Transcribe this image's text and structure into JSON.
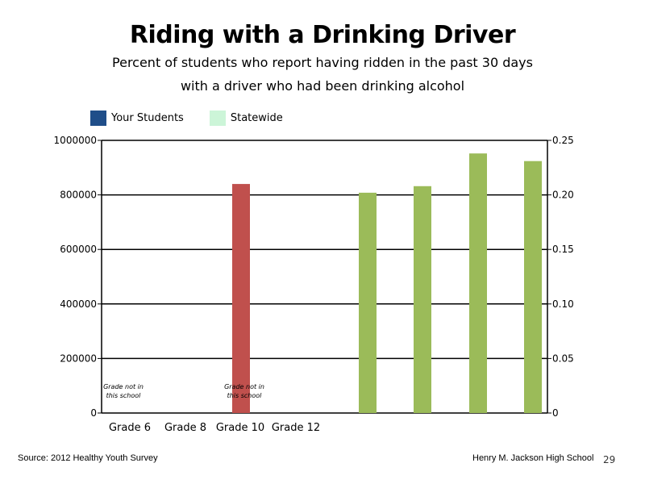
{
  "title": "Riding with a Drinking Driver",
  "subtitle_line1": "Percent of students who report having ridden in the past 30 days",
  "subtitle_line2": "with a driver who had been drinking alcohol",
  "legend": [
    {
      "label": "Your Students",
      "color": "#1f4e89"
    },
    {
      "label": "Statewide",
      "color": "#ccf5d8"
    }
  ],
  "footer": {
    "source": "Source: 2012 Healthy Youth Survey",
    "school": "Henry M. Jackson High School",
    "page": "29"
  },
  "chart_data": {
    "type": "bar",
    "categories": [
      "Grade 6",
      "Grade 8",
      "Grade 10",
      "Grade 12"
    ],
    "left_axis": {
      "ylim": [
        0,
        1000000
      ],
      "ticks": [
        "0",
        "200000",
        "400000",
        "600000",
        "800000",
        "1000000"
      ]
    },
    "right_axis": {
      "ylim": [
        0,
        0.25
      ],
      "ticks": [
        "0",
        "0.05",
        "0.10",
        "0.15",
        "0.20",
        "0.25"
      ]
    },
    "bars": [
      {
        "color": "#c0504d",
        "value": 840000,
        "axis": "left"
      },
      {
        "color": "#9bbb59",
        "value": 0.202,
        "axis": "right"
      },
      {
        "color": "#9bbb59",
        "value": 0.208,
        "axis": "right"
      },
      {
        "color": "#9bbb59",
        "value": 0.238,
        "axis": "right"
      },
      {
        "color": "#9bbb59",
        "value": 0.231,
        "axis": "right"
      }
    ],
    "annotations": [
      {
        "text": [
          "Grade not in",
          "this school"
        ]
      },
      {
        "text": [
          "Grade not in",
          "this school"
        ]
      }
    ],
    "grid": true
  }
}
